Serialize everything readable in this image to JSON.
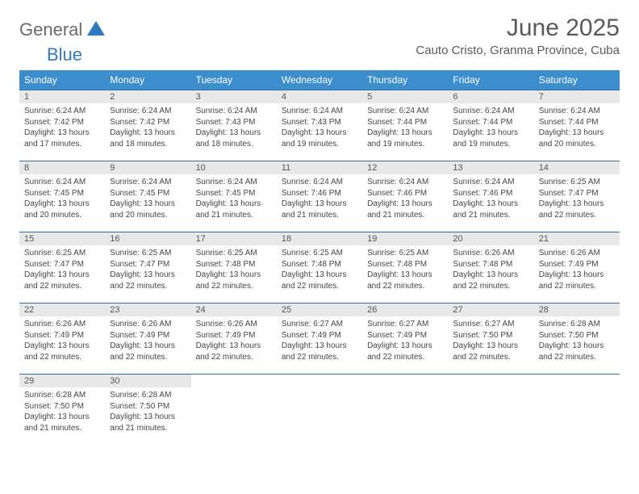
{
  "brand": {
    "general": "General",
    "blue": "Blue"
  },
  "title": "June 2025",
  "location": "Cauto Cristo, Granma Province, Cuba",
  "colors": {
    "header_bg": "#3c8dcc",
    "header_text": "#ffffff",
    "daynum_bg": "#e8e8e8",
    "row_divider": "#2f6fa8",
    "body_text": "#464646",
    "title_text": "#5a5a5a",
    "logo_gray": "#6b6b6b",
    "logo_blue": "#2f7bbf",
    "page_bg": "#ffffff"
  },
  "typography": {
    "title_fontsize": 30,
    "location_fontsize": 15,
    "weekday_fontsize": 12,
    "daynum_fontsize": 11,
    "body_fontsize": 10
  },
  "weekdays": [
    "Sunday",
    "Monday",
    "Tuesday",
    "Wednesday",
    "Thursday",
    "Friday",
    "Saturday"
  ],
  "days": [
    {
      "n": "1",
      "sunrise": "Sunrise: 6:24 AM",
      "sunset": "Sunset: 7:42 PM",
      "d1": "Daylight: 13 hours",
      "d2": "and 17 minutes."
    },
    {
      "n": "2",
      "sunrise": "Sunrise: 6:24 AM",
      "sunset": "Sunset: 7:42 PM",
      "d1": "Daylight: 13 hours",
      "d2": "and 18 minutes."
    },
    {
      "n": "3",
      "sunrise": "Sunrise: 6:24 AM",
      "sunset": "Sunset: 7:43 PM",
      "d1": "Daylight: 13 hours",
      "d2": "and 18 minutes."
    },
    {
      "n": "4",
      "sunrise": "Sunrise: 6:24 AM",
      "sunset": "Sunset: 7:43 PM",
      "d1": "Daylight: 13 hours",
      "d2": "and 19 minutes."
    },
    {
      "n": "5",
      "sunrise": "Sunrise: 6:24 AM",
      "sunset": "Sunset: 7:44 PM",
      "d1": "Daylight: 13 hours",
      "d2": "and 19 minutes."
    },
    {
      "n": "6",
      "sunrise": "Sunrise: 6:24 AM",
      "sunset": "Sunset: 7:44 PM",
      "d1": "Daylight: 13 hours",
      "d2": "and 19 minutes."
    },
    {
      "n": "7",
      "sunrise": "Sunrise: 6:24 AM",
      "sunset": "Sunset: 7:44 PM",
      "d1": "Daylight: 13 hours",
      "d2": "and 20 minutes."
    },
    {
      "n": "8",
      "sunrise": "Sunrise: 6:24 AM",
      "sunset": "Sunset: 7:45 PM",
      "d1": "Daylight: 13 hours",
      "d2": "and 20 minutes."
    },
    {
      "n": "9",
      "sunrise": "Sunrise: 6:24 AM",
      "sunset": "Sunset: 7:45 PM",
      "d1": "Daylight: 13 hours",
      "d2": "and 20 minutes."
    },
    {
      "n": "10",
      "sunrise": "Sunrise: 6:24 AM",
      "sunset": "Sunset: 7:45 PM",
      "d1": "Daylight: 13 hours",
      "d2": "and 21 minutes."
    },
    {
      "n": "11",
      "sunrise": "Sunrise: 6:24 AM",
      "sunset": "Sunset: 7:46 PM",
      "d1": "Daylight: 13 hours",
      "d2": "and 21 minutes."
    },
    {
      "n": "12",
      "sunrise": "Sunrise: 6:24 AM",
      "sunset": "Sunset: 7:46 PM",
      "d1": "Daylight: 13 hours",
      "d2": "and 21 minutes."
    },
    {
      "n": "13",
      "sunrise": "Sunrise: 6:24 AM",
      "sunset": "Sunset: 7:46 PM",
      "d1": "Daylight: 13 hours",
      "d2": "and 21 minutes."
    },
    {
      "n": "14",
      "sunrise": "Sunrise: 6:25 AM",
      "sunset": "Sunset: 7:47 PM",
      "d1": "Daylight: 13 hours",
      "d2": "and 22 minutes."
    },
    {
      "n": "15",
      "sunrise": "Sunrise: 6:25 AM",
      "sunset": "Sunset: 7:47 PM",
      "d1": "Daylight: 13 hours",
      "d2": "and 22 minutes."
    },
    {
      "n": "16",
      "sunrise": "Sunrise: 6:25 AM",
      "sunset": "Sunset: 7:47 PM",
      "d1": "Daylight: 13 hours",
      "d2": "and 22 minutes."
    },
    {
      "n": "17",
      "sunrise": "Sunrise: 6:25 AM",
      "sunset": "Sunset: 7:48 PM",
      "d1": "Daylight: 13 hours",
      "d2": "and 22 minutes."
    },
    {
      "n": "18",
      "sunrise": "Sunrise: 6:25 AM",
      "sunset": "Sunset: 7:48 PM",
      "d1": "Daylight: 13 hours",
      "d2": "and 22 minutes."
    },
    {
      "n": "19",
      "sunrise": "Sunrise: 6:25 AM",
      "sunset": "Sunset: 7:48 PM",
      "d1": "Daylight: 13 hours",
      "d2": "and 22 minutes."
    },
    {
      "n": "20",
      "sunrise": "Sunrise: 6:26 AM",
      "sunset": "Sunset: 7:48 PM",
      "d1": "Daylight: 13 hours",
      "d2": "and 22 minutes."
    },
    {
      "n": "21",
      "sunrise": "Sunrise: 6:26 AM",
      "sunset": "Sunset: 7:49 PM",
      "d1": "Daylight: 13 hours",
      "d2": "and 22 minutes."
    },
    {
      "n": "22",
      "sunrise": "Sunrise: 6:26 AM",
      "sunset": "Sunset: 7:49 PM",
      "d1": "Daylight: 13 hours",
      "d2": "and 22 minutes."
    },
    {
      "n": "23",
      "sunrise": "Sunrise: 6:26 AM",
      "sunset": "Sunset: 7:49 PM",
      "d1": "Daylight: 13 hours",
      "d2": "and 22 minutes."
    },
    {
      "n": "24",
      "sunrise": "Sunrise: 6:26 AM",
      "sunset": "Sunset: 7:49 PM",
      "d1": "Daylight: 13 hours",
      "d2": "and 22 minutes."
    },
    {
      "n": "25",
      "sunrise": "Sunrise: 6:27 AM",
      "sunset": "Sunset: 7:49 PM",
      "d1": "Daylight: 13 hours",
      "d2": "and 22 minutes."
    },
    {
      "n": "26",
      "sunrise": "Sunrise: 6:27 AM",
      "sunset": "Sunset: 7:49 PM",
      "d1": "Daylight: 13 hours",
      "d2": "and 22 minutes."
    },
    {
      "n": "27",
      "sunrise": "Sunrise: 6:27 AM",
      "sunset": "Sunset: 7:50 PM",
      "d1": "Daylight: 13 hours",
      "d2": "and 22 minutes."
    },
    {
      "n": "28",
      "sunrise": "Sunrise: 6:28 AM",
      "sunset": "Sunset: 7:50 PM",
      "d1": "Daylight: 13 hours",
      "d2": "and 22 minutes."
    },
    {
      "n": "29",
      "sunrise": "Sunrise: 6:28 AM",
      "sunset": "Sunset: 7:50 PM",
      "d1": "Daylight: 13 hours",
      "d2": "and 21 minutes."
    },
    {
      "n": "30",
      "sunrise": "Sunrise: 6:28 AM",
      "sunset": "Sunset: 7:50 PM",
      "d1": "Daylight: 13 hours",
      "d2": "and 21 minutes."
    }
  ]
}
